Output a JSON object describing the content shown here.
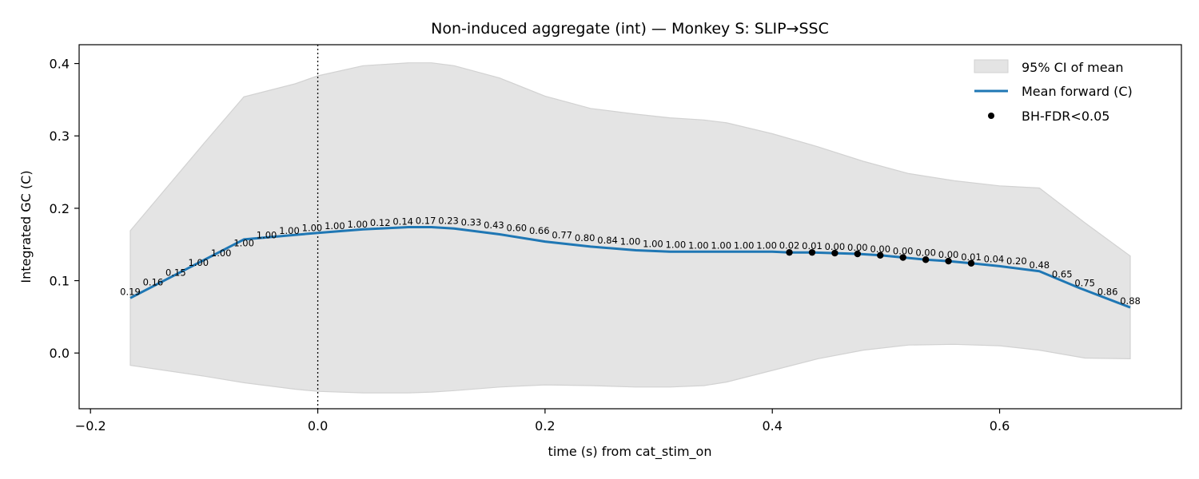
{
  "chart_data": {
    "type": "line",
    "title": "Non-induced aggregate (int) — Monkey S: SLIP→SSC",
    "xlabel": "time (s) from cat_stim_on",
    "ylabel": "Integrated GC (C)",
    "xlim": [
      -0.21,
      0.76
    ],
    "ylim": [
      -0.077,
      0.426
    ],
    "xticks": [
      -0.2,
      0.0,
      0.2,
      0.4,
      0.6
    ],
    "xtick_labels": [
      "−0.2",
      "0.0",
      "0.2",
      "0.4",
      "0.6"
    ],
    "yticks": [
      0.0,
      0.1,
      0.2,
      0.3,
      0.4
    ],
    "ytick_labels": [
      "0.0",
      "0.1",
      "0.2",
      "0.3",
      "0.4"
    ],
    "vline_x": 0.0,
    "grid": false,
    "legend_position": "top-right",
    "legend": [
      "95% CI of mean",
      "Mean forward (C)",
      "BH-FDR<0.05"
    ],
    "colors": {
      "line": "#1f77b4",
      "ci_fill": "#e4e4e4",
      "ci_edge": "#d2d2d2",
      "sig": "#000000"
    },
    "series": [
      {
        "name": "Mean forward (C)",
        "x": [
          -0.165,
          -0.065,
          0.0,
          0.04,
          0.08,
          0.1,
          0.12,
          0.16,
          0.2,
          0.24,
          0.28,
          0.31,
          0.35,
          0.4,
          0.415,
          0.435,
          0.455,
          0.475,
          0.495,
          0.515,
          0.535,
          0.555,
          0.575,
          0.6,
          0.635,
          0.67,
          0.715
        ],
        "y": [
          0.076,
          0.157,
          0.166,
          0.171,
          0.174,
          0.174,
          0.172,
          0.164,
          0.154,
          0.147,
          0.142,
          0.14,
          0.14,
          0.14,
          0.139,
          0.139,
          0.138,
          0.137,
          0.135,
          0.132,
          0.129,
          0.127,
          0.124,
          0.12,
          0.113,
          0.09,
          0.063
        ]
      }
    ],
    "ci": {
      "x": [
        -0.165,
        -0.1,
        -0.065,
        -0.02,
        0.0,
        0.04,
        0.08,
        0.1,
        0.12,
        0.16,
        0.2,
        0.24,
        0.28,
        0.31,
        0.34,
        0.36,
        0.4,
        0.44,
        0.48,
        0.52,
        0.56,
        0.6,
        0.635,
        0.675,
        0.715
      ],
      "upper": [
        0.169,
        0.29,
        0.354,
        0.372,
        0.383,
        0.397,
        0.401,
        0.401,
        0.397,
        0.38,
        0.355,
        0.338,
        0.33,
        0.325,
        0.322,
        0.318,
        0.303,
        0.285,
        0.265,
        0.248,
        0.238,
        0.231,
        0.228,
        0.18,
        0.134
      ],
      "lower": [
        -0.017,
        -0.032,
        -0.041,
        -0.05,
        -0.053,
        -0.055,
        -0.055,
        -0.054,
        -0.052,
        -0.047,
        -0.044,
        -0.045,
        -0.047,
        -0.047,
        -0.045,
        -0.04,
        -0.024,
        -0.008,
        0.004,
        0.011,
        0.012,
        0.01,
        0.004,
        -0.007,
        -0.008
      ]
    },
    "sig_points": {
      "x": [
        0.415,
        0.435,
        0.455,
        0.475,
        0.495,
        0.515,
        0.535,
        0.555,
        0.575
      ],
      "y": [
        0.139,
        0.139,
        0.138,
        0.137,
        0.135,
        0.132,
        0.129,
        0.127,
        0.124
      ]
    },
    "p_labels": {
      "x": [
        -0.165,
        -0.145,
        -0.125,
        -0.105,
        -0.085,
        -0.065,
        -0.045,
        -0.025,
        -0.005,
        0.015,
        0.035,
        0.055,
        0.075,
        0.095,
        0.115,
        0.135,
        0.155,
        0.175,
        0.195,
        0.215,
        0.235,
        0.255,
        0.275,
        0.295,
        0.315,
        0.335,
        0.355,
        0.375,
        0.395,
        0.415,
        0.435,
        0.455,
        0.475,
        0.495,
        0.515,
        0.535,
        0.555,
        0.575,
        0.595,
        0.615,
        0.635,
        0.655,
        0.675,
        0.695,
        0.715
      ],
      "y": [
        0.076,
        0.089,
        0.102,
        0.116,
        0.129,
        0.143,
        0.154,
        0.16,
        0.164,
        0.167,
        0.169,
        0.171,
        0.173,
        0.174,
        0.174,
        0.172,
        0.168,
        0.164,
        0.16,
        0.154,
        0.15,
        0.147,
        0.145,
        0.142,
        0.141,
        0.14,
        0.14,
        0.14,
        0.14,
        0.14,
        0.139,
        0.138,
        0.137,
        0.135,
        0.132,
        0.13,
        0.127,
        0.124,
        0.121,
        0.118,
        0.113,
        0.1,
        0.088,
        0.076,
        0.063
      ],
      "labels": [
        "0.19",
        "0.16",
        "0.15",
        "1.00",
        "1.00",
        "1.00",
        "1.00",
        "1.00",
        "1.00",
        "1.00",
        "1.00",
        "0.12",
        "0.14",
        "0.17",
        "0.23",
        "0.33",
        "0.43",
        "0.60",
        "0.66",
        "0.77",
        "0.80",
        "0.84",
        "1.00",
        "1.00",
        "1.00",
        "1.00",
        "1.00",
        "1.00",
        "1.00",
        "0.02",
        "0.01",
        "0.00",
        "0.00",
        "0.00",
        "0.00",
        "0.00",
        "0.00",
        "0.01",
        "0.04",
        "0.20",
        "0.48",
        "0.65",
        "0.75",
        "0.86",
        "0.88"
      ]
    }
  }
}
